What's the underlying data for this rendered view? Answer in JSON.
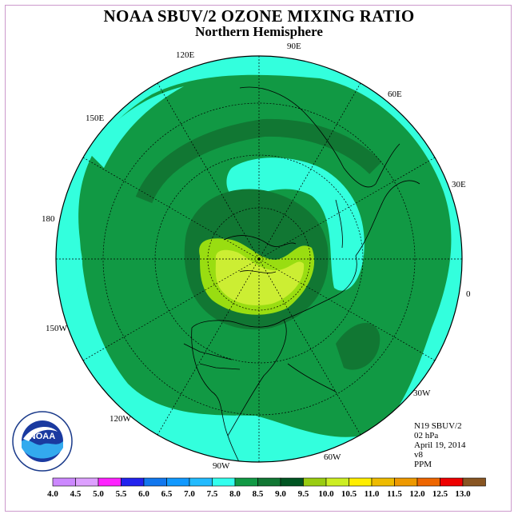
{
  "title": "NOAA SBUV/2 OZONE MIXING RATIO",
  "subtitle": "Northern Hemisphere",
  "longitude_labels": [
    {
      "id": "lon-90e",
      "text": "90E"
    },
    {
      "id": "lon-60e",
      "text": "60E"
    },
    {
      "id": "lon-30e",
      "text": "30E"
    },
    {
      "id": "lon-0",
      "text": "0"
    },
    {
      "id": "lon-30w",
      "text": "30W"
    },
    {
      "id": "lon-60w",
      "text": "60W"
    },
    {
      "id": "lon-90w",
      "text": "90W"
    },
    {
      "id": "lon-120w",
      "text": "120W"
    },
    {
      "id": "lon-150w",
      "text": "150W"
    },
    {
      "id": "lon-180",
      "text": "180"
    },
    {
      "id": "lon-150e",
      "text": "150E"
    },
    {
      "id": "lon-120e",
      "text": "120E"
    }
  ],
  "info": {
    "satellite": "N19 SBUV/2",
    "pressure": "02 hPa",
    "date": "April 19, 2014",
    "version": "v8",
    "units": "PPM"
  },
  "colorbar": {
    "labels": [
      "4.0",
      "4.5",
      "5.0",
      "5.5",
      "6.0",
      "6.5",
      "7.0",
      "7.5",
      "8.0",
      "8.5",
      "9.0",
      "9.5",
      "10.0",
      "10.5",
      "11.0",
      "11.5",
      "12.0",
      "12.5",
      "13.0"
    ],
    "colors": [
      "#cc88ff",
      "#dda0ff",
      "#ff22ff",
      "#2222ee",
      "#1177ee",
      "#1199ff",
      "#22bbff",
      "#33ffee",
      "#119944",
      "#117733",
      "#005522",
      "#99cc11",
      "#ccee22",
      "#ffee00",
      "#eebb00",
      "#ee9900",
      "#ee6600",
      "#ee0000",
      "#885522"
    ]
  },
  "map_colors": {
    "ring_light": "#33ffdd",
    "mid_green": "#119944",
    "dark_green": "#117733",
    "yellow_green": "#99dd11",
    "lime": "#ccee33"
  },
  "logo": {
    "text": "NOAA"
  }
}
